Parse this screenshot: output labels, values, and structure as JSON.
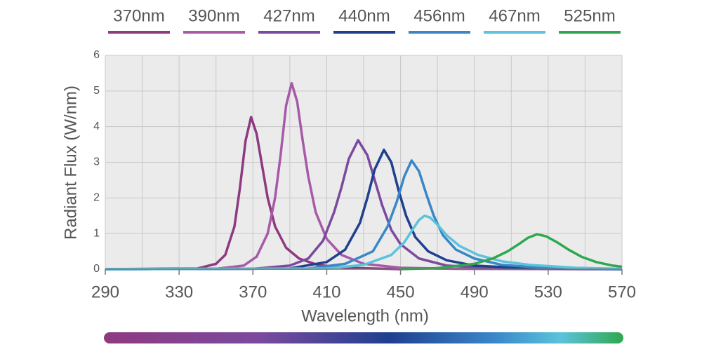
{
  "chart_data": {
    "type": "line",
    "xlabel": "Wavelength (nm)",
    "ylabel": "Radiant Flux (W/nm)",
    "xlim": [
      290,
      570
    ],
    "xticks": [
      290,
      330,
      370,
      410,
      450,
      490,
      530,
      570
    ],
    "xgrid": [
      290,
      310,
      330,
      350,
      370,
      390,
      410,
      430,
      450,
      470,
      490,
      510,
      530,
      550,
      570
    ],
    "ylim": [
      0,
      6
    ],
    "yticks": [
      0,
      1,
      2,
      3,
      4,
      5,
      6
    ],
    "grid": true,
    "legend": "top",
    "series": [
      {
        "name": "370nm",
        "color": "#8e3a80",
        "x": [
          290,
          340,
          350,
          355,
          360,
          363,
          366,
          369,
          372,
          375,
          378,
          382,
          388,
          395,
          405,
          420,
          450
        ],
        "values": [
          0,
          0.02,
          0.15,
          0.4,
          1.2,
          2.3,
          3.6,
          4.27,
          3.8,
          2.9,
          2.0,
          1.2,
          0.6,
          0.3,
          0.12,
          0.04,
          0
        ]
      },
      {
        "name": "390nm",
        "color": "#a65aa8",
        "x": [
          290,
          350,
          365,
          372,
          378,
          382,
          385,
          388,
          391,
          394,
          397,
          400,
          404,
          410,
          418,
          430,
          450,
          480,
          570
        ],
        "values": [
          0,
          0.01,
          0.1,
          0.35,
          1.0,
          2.0,
          3.2,
          4.6,
          5.22,
          4.7,
          3.6,
          2.6,
          1.6,
          0.85,
          0.4,
          0.15,
          0.04,
          0.01,
          0
        ]
      },
      {
        "name": "427nm",
        "color": "#7b4a9e",
        "x": [
          290,
          370,
          390,
          400,
          408,
          414,
          418,
          422,
          427,
          432,
          436,
          440,
          445,
          450,
          460,
          475,
          500,
          570
        ],
        "values": [
          0,
          0.01,
          0.1,
          0.3,
          0.8,
          1.6,
          2.3,
          3.1,
          3.62,
          3.2,
          2.5,
          1.8,
          1.1,
          0.7,
          0.3,
          0.1,
          0.03,
          0
        ]
      },
      {
        "name": "440nm",
        "color": "#1f3f8f",
        "x": [
          290,
          390,
          410,
          420,
          428,
          432,
          436,
          441,
          445,
          449,
          453,
          458,
          465,
          475,
          490,
          520,
          570
        ],
        "values": [
          0,
          0.02,
          0.2,
          0.55,
          1.3,
          2.0,
          2.8,
          3.35,
          3.0,
          2.2,
          1.5,
          0.9,
          0.5,
          0.25,
          0.1,
          0.02,
          0
        ]
      },
      {
        "name": "456nm",
        "color": "#3a86c8",
        "x": [
          290,
          400,
          420,
          435,
          443,
          448,
          452,
          456,
          460,
          464,
          468,
          473,
          480,
          490,
          505,
          530,
          570
        ],
        "values": [
          0,
          0.02,
          0.15,
          0.5,
          1.2,
          1.9,
          2.6,
          3.05,
          2.75,
          2.1,
          1.5,
          0.95,
          0.55,
          0.3,
          0.12,
          0.03,
          0
        ]
      },
      {
        "name": "467nm",
        "color": "#5bc3db",
        "x": [
          290,
          410,
          430,
          445,
          452,
          457,
          460,
          463,
          466,
          470,
          475,
          482,
          492,
          505,
          520,
          545,
          570
        ],
        "values": [
          0,
          0.02,
          0.12,
          0.4,
          0.75,
          1.15,
          1.38,
          1.5,
          1.45,
          1.25,
          0.95,
          0.65,
          0.4,
          0.22,
          0.12,
          0.04,
          0.01
        ]
      },
      {
        "name": "525nm",
        "color": "#2ea84f",
        "x": [
          450,
          470,
          490,
          500,
          508,
          514,
          519,
          524,
          529,
          535,
          541,
          548,
          556,
          565,
          570
        ],
        "values": [
          0,
          0.03,
          0.15,
          0.3,
          0.5,
          0.7,
          0.88,
          0.98,
          0.92,
          0.75,
          0.55,
          0.35,
          0.2,
          0.1,
          0.07
        ]
      }
    ]
  }
}
